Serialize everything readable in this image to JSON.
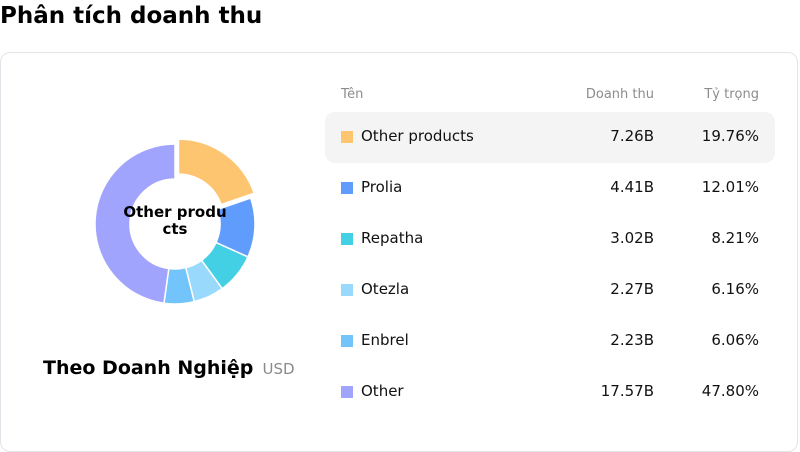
{
  "page": {
    "title": "Phân tích doanh thu"
  },
  "chart": {
    "center_label": "Other products",
    "caption_title": "Theo Doanh Nghiệp",
    "caption_unit": "USD"
  },
  "table": {
    "headers": {
      "name": "Tên",
      "revenue": "Doanh thu",
      "share": "Tỷ trọng"
    },
    "rows": [
      {
        "name": "Other products",
        "revenue": "7.26B",
        "share": "19.76%",
        "color": "#fec570"
      },
      {
        "name": "Prolia",
        "revenue": "4.41B",
        "share": "12.01%",
        "color": "#5f9cfc"
      },
      {
        "name": "Repatha",
        "revenue": "3.02B",
        "share": "8.21%",
        "color": "#43d0e4"
      },
      {
        "name": "Otezla",
        "revenue": "2.27B",
        "share": "6.16%",
        "color": "#98d9fc"
      },
      {
        "name": "Enbrel",
        "revenue": "2.23B",
        "share": "6.06%",
        "color": "#73c4fa"
      },
      {
        "name": "Other",
        "revenue": "17.57B",
        "share": "47.80%",
        "color": "#a1a4fc"
      }
    ]
  },
  "chart_data": {
    "type": "pie",
    "title": "Phân tích doanh thu",
    "subtitle": "Theo Doanh Nghiệp (USD)",
    "donut": true,
    "highlighted": "Other products",
    "categories": [
      "Other products",
      "Prolia",
      "Repatha",
      "Otezla",
      "Enbrel",
      "Other"
    ],
    "values": [
      7.26,
      4.41,
      3.02,
      2.27,
      2.23,
      17.57
    ],
    "unit": "B USD",
    "percentages": [
      19.76,
      12.01,
      8.21,
      6.16,
      6.06,
      47.8
    ],
    "colors": [
      "#fec570",
      "#5f9cfc",
      "#43d0e4",
      "#98d9fc",
      "#73c4fa",
      "#a1a4fc"
    ],
    "legend_position": "right (table)"
  }
}
